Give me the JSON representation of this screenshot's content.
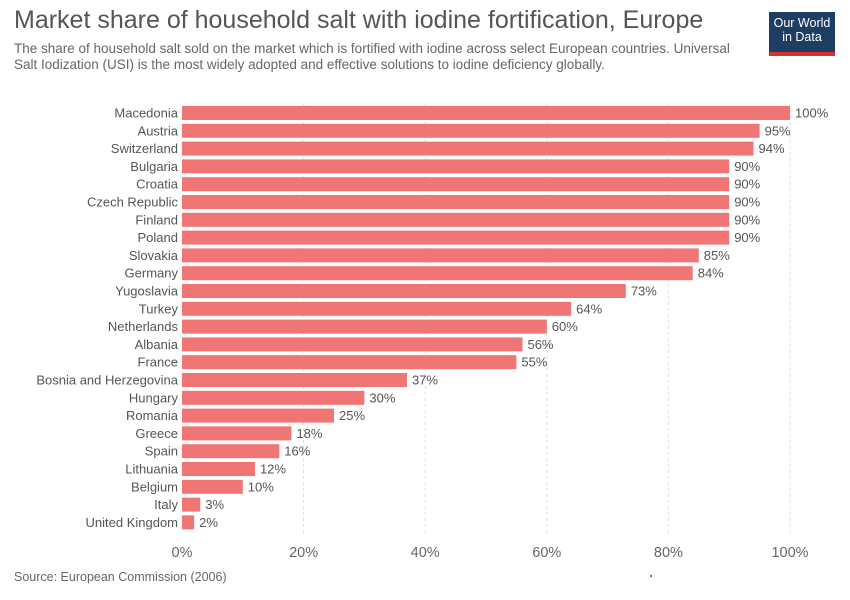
{
  "header": {
    "title": "Market share of household salt with iodine fortification, Europe",
    "subtitle": "The share of household salt sold on the market which is fortified with iodine across select European countries. Universal Salt Iodization (USI) is the most widely adopted and effective solutions to iodine deficiency globally.",
    "logo_line1": "Our World",
    "logo_line2": "in Data"
  },
  "footer": {
    "source": "Source: European Commission (2006)"
  },
  "colors": {
    "bar": "#f07575",
    "grid": "#dddddd",
    "logo_bg": "#1d3d63",
    "logo_accent": "#dc2f2f"
  },
  "chart_data": {
    "type": "bar",
    "orientation": "horizontal",
    "title": "Market share of household salt with iodine fortification, Europe",
    "categories": [
      "Macedonia",
      "Austria",
      "Switzerland",
      "Bulgaria",
      "Croatia",
      "Czech Republic",
      "Finland",
      "Poland",
      "Slovakia",
      "Germany",
      "Yugoslavia",
      "Turkey",
      "Netherlands",
      "Albania",
      "France",
      "Bosnia and Herzegovina",
      "Hungary",
      "Romania",
      "Greece",
      "Spain",
      "Lithuania",
      "Belgium",
      "Italy",
      "United Kingdom"
    ],
    "values": [
      100,
      95,
      94,
      90,
      90,
      90,
      90,
      90,
      85,
      84,
      73,
      64,
      60,
      56,
      55,
      37,
      30,
      25,
      18,
      16,
      12,
      10,
      3,
      2
    ],
    "value_labels": [
      "100%",
      "95%",
      "94%",
      "90%",
      "90%",
      "90%",
      "90%",
      "90%",
      "85%",
      "84%",
      "73%",
      "64%",
      "60%",
      "56%",
      "55%",
      "37%",
      "30%",
      "25%",
      "18%",
      "16%",
      "12%",
      "10%",
      "3%",
      "2%"
    ],
    "xlim": [
      0,
      100
    ],
    "xticks": [
      0,
      20,
      40,
      60,
      80,
      100
    ],
    "xtick_labels": [
      "0%",
      "20%",
      "40%",
      "60%",
      "80%",
      "100%"
    ],
    "grid": true
  }
}
